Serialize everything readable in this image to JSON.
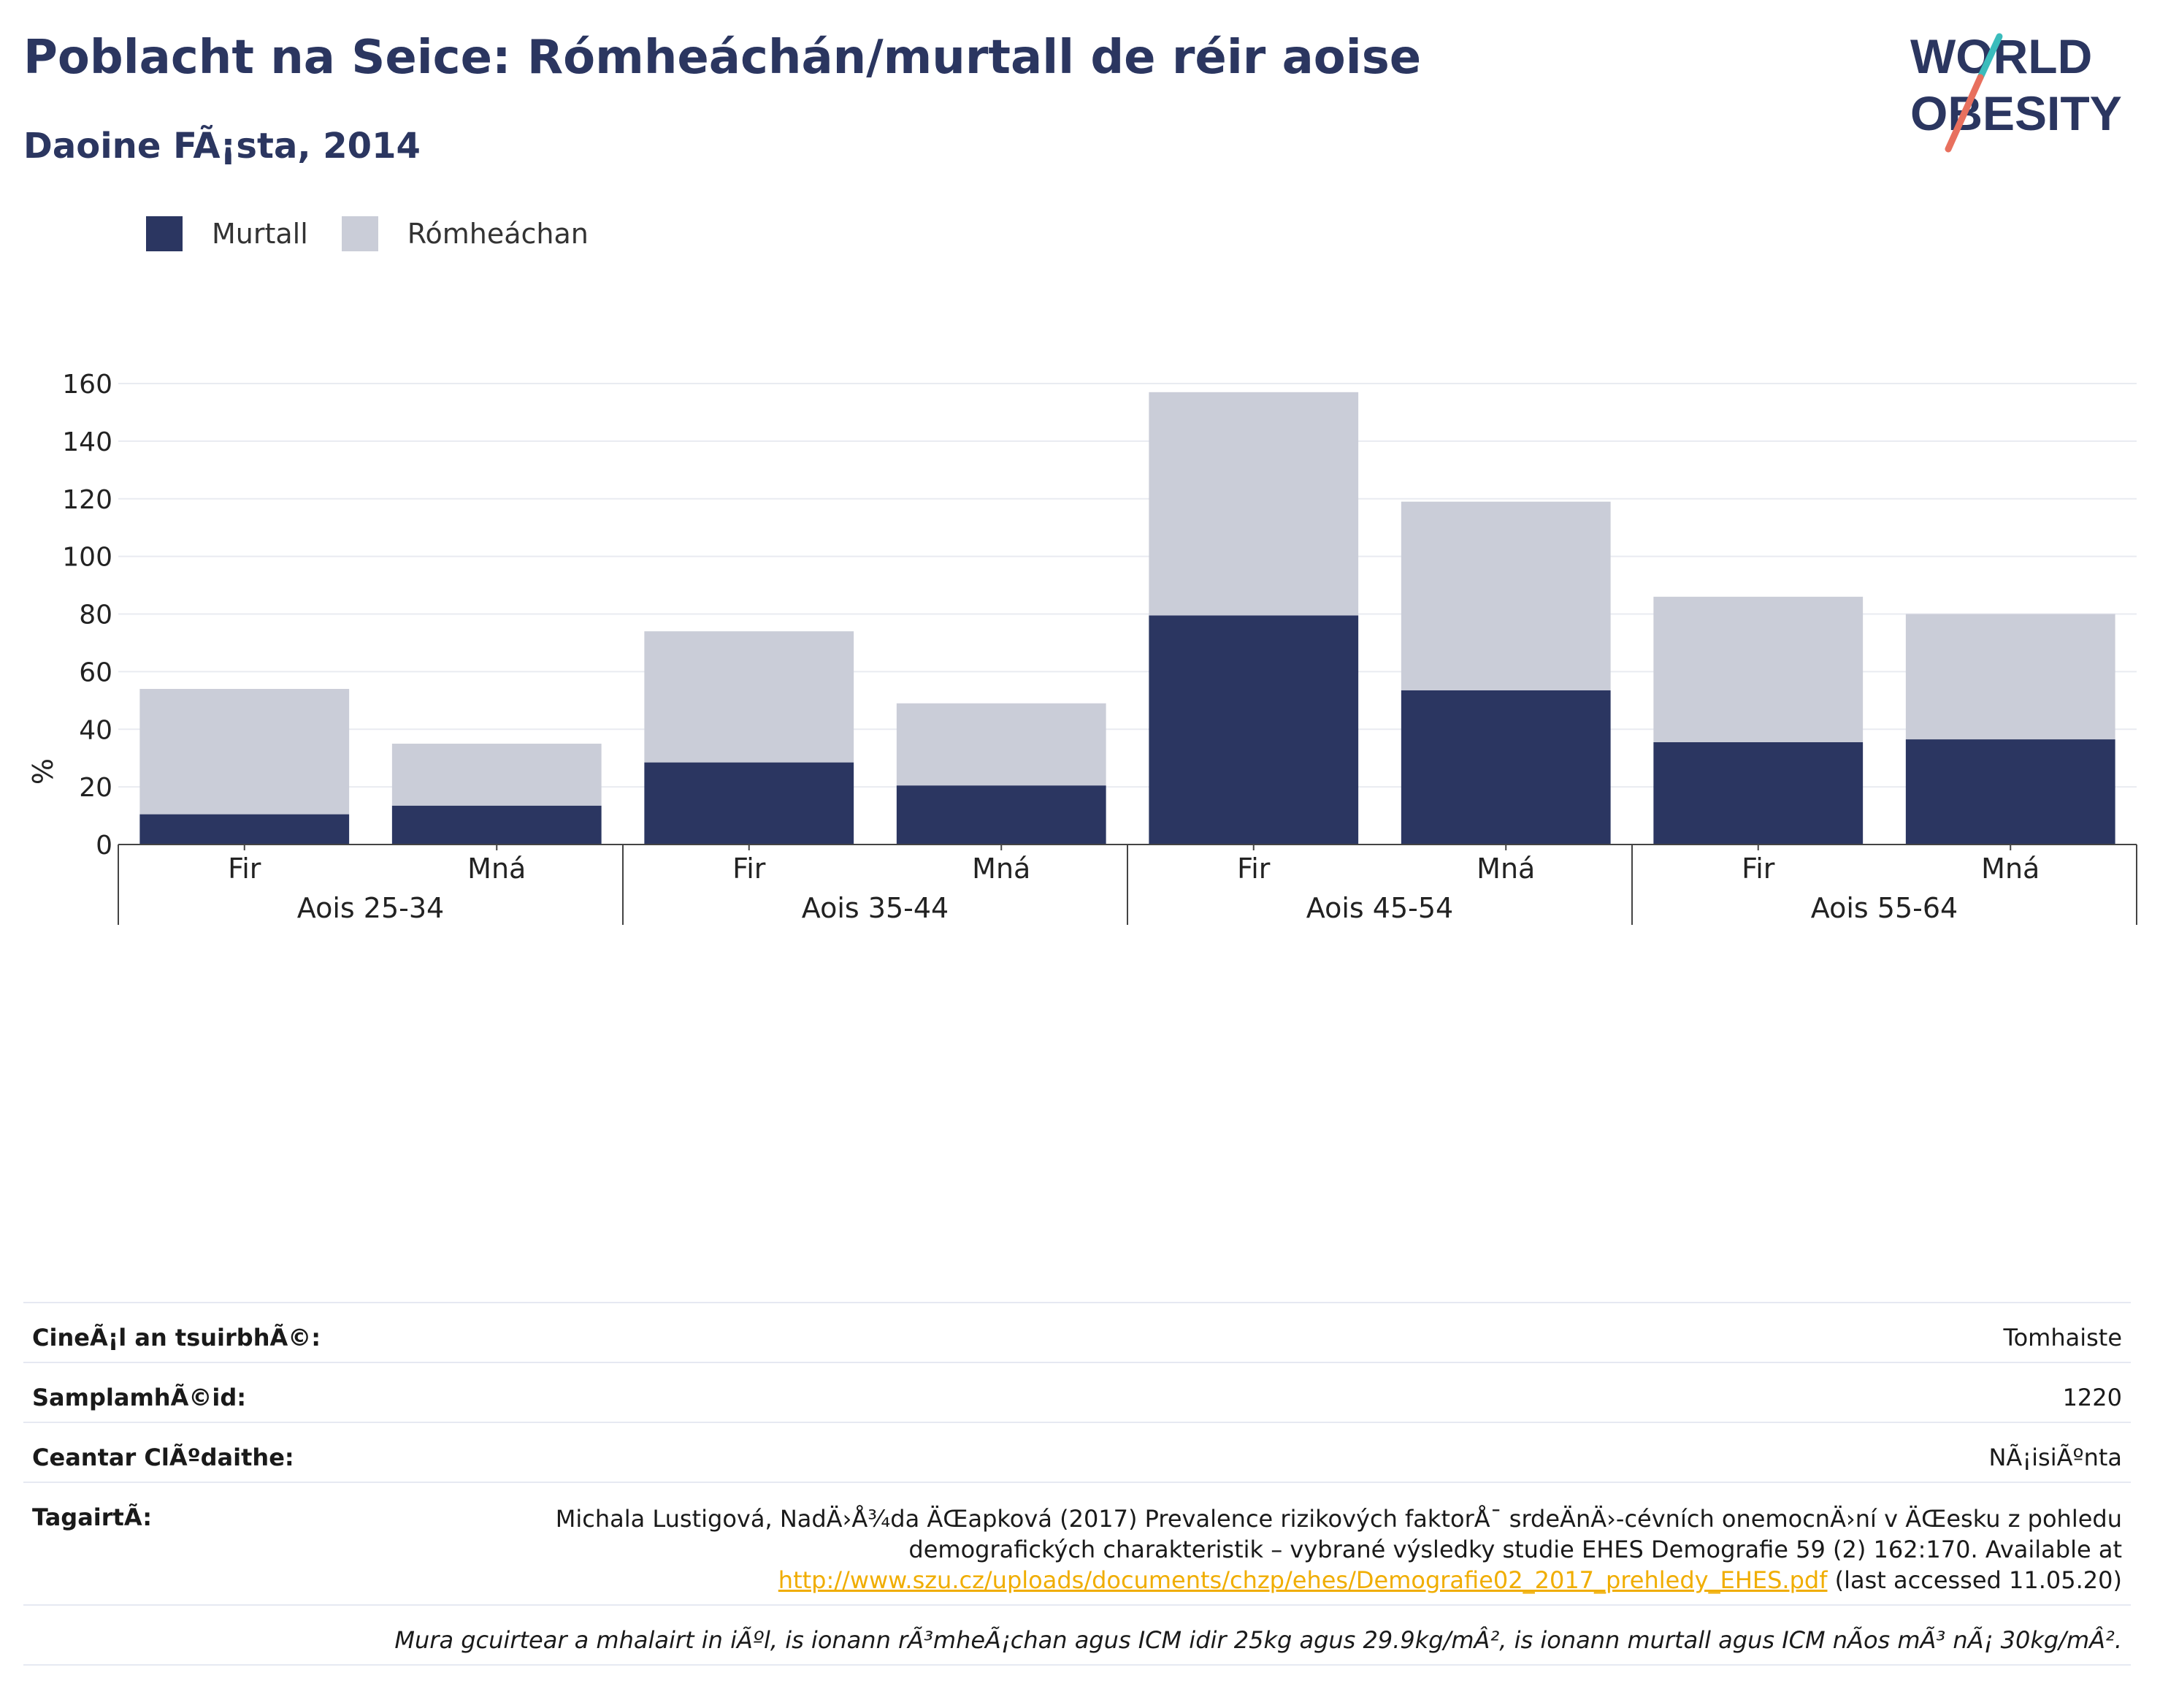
{
  "header": {
    "title": "Poblacht na Seice: Rómheáchán/murtall de réir aoise",
    "subtitle": "Daoine FÃ¡sta, 2014"
  },
  "logo": {
    "line1": "WORLD",
    "line2": "OBESITY"
  },
  "legend": [
    {
      "label": "Murtall",
      "color": "#2b3661"
    },
    {
      "label": "Rómheáchan",
      "color": "#cacdd8"
    }
  ],
  "chart_data": {
    "type": "bar",
    "stacked": true,
    "ylabel": "%",
    "ylim": [
      0,
      170
    ],
    "yticks": [
      0,
      20,
      40,
      60,
      80,
      100,
      120,
      140,
      160
    ],
    "grid": true,
    "legend_position": "top-left",
    "groups": [
      "Aois 25-34",
      "Aois 35-44",
      "Aois 45-54",
      "Aois 55-64"
    ],
    "categories": [
      "Fir",
      "Mná",
      "Fir",
      "Mná",
      "Fir",
      "Mná",
      "Fir",
      "Mná"
    ],
    "series": [
      {
        "name": "Murtall",
        "color": "#2b3661",
        "values": [
          10.5,
          13.5,
          28.5,
          20.5,
          79.5,
          53.5,
          35.5,
          36.5
        ]
      },
      {
        "name": "Rómheáchan",
        "color": "#cacdd8",
        "values": [
          43.5,
          21.5,
          45.5,
          28.5,
          77.5,
          65.5,
          50.5,
          43.5
        ]
      }
    ]
  },
  "info": {
    "rows": [
      {
        "label": "CineÃ¡l an tsuirbhÃ©:",
        "value": "Tomhaiste"
      },
      {
        "label": "SamplamhÃ©id:",
        "value": "1220"
      },
      {
        "label": "Ceantar ClÃºdaithe:",
        "value": "NÃ¡isiÃºnta"
      }
    ],
    "reference": {
      "label": "TagairtÃ:",
      "text": "Michala Lustigová, NadÄ›Å¾da ÄŒapková (2017) Prevalence rizikových faktorÅ¯ srdeÄnÄ›-cévních onemocnÄ›ní v ÄŒesku z pohledu demografických charakteristik – vybrané výsledky studie EHES Demografie 59 (2) 162:170. Available at",
      "link": "http://www.szu.cz/uploads/documents/chzp/ehes/Demografie02_2017_prehledy_EHES.pdf",
      "suffix": "(last accessed 11.05.20)"
    },
    "note": "Mura gcuirtear a mhalairt in iÃºl, is ionann rÃ³mheÃ¡chan agus ICM idir 25kg agus 29.9kg/mÂ², is ionann murtall agus ICM nÃ­os mÃ³ nÃ¡ 30kg/mÂ²."
  }
}
